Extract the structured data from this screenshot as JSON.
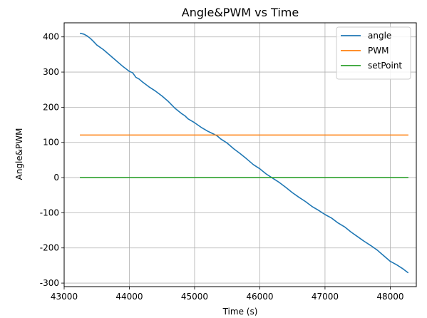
{
  "chart_data": {
    "type": "line",
    "title": "Angle&PWM vs Time",
    "xlabel": "Time (s)",
    "ylabel": "Angle&PWM",
    "xlim": [
      43000,
      48400
    ],
    "ylim": [
      -310,
      440
    ],
    "xticks": [
      43000,
      44000,
      45000,
      46000,
      47000,
      48000
    ],
    "yticks": [
      -300,
      -200,
      -100,
      0,
      100,
      200,
      300,
      400
    ],
    "grid": true,
    "legend_position": "top-right",
    "series": [
      {
        "name": "angle",
        "color": "#1f77b4",
        "x": [
          43250,
          43300,
          43350,
          43400,
          43450,
          43500,
          43600,
          43700,
          43800,
          43900,
          44000,
          44050,
          44100,
          44150,
          44200,
          44300,
          44400,
          44500,
          44600,
          44700,
          44800,
          44850,
          44900,
          45000,
          45100,
          45200,
          45300,
          45350,
          45400,
          45500,
          45600,
          45700,
          45800,
          45900,
          46000,
          46100,
          46200,
          46300,
          46400,
          46500,
          46600,
          46700,
          46800,
          46900,
          47000,
          47100,
          47200,
          47300,
          47400,
          47500,
          47600,
          47700,
          47800,
          47900,
          48000,
          48100,
          48200,
          48270
        ],
        "y": [
          410,
          408,
          403,
          396,
          387,
          377,
          364,
          348,
          332,
          316,
          302,
          298,
          285,
          280,
          272,
          258,
          246,
          232,
          216,
          197,
          182,
          176,
          167,
          156,
          143,
          132,
          123,
          118,
          110,
          98,
          82,
          68,
          53,
          37,
          25,
          10,
          -2,
          -14,
          -28,
          -43,
          -56,
          -68,
          -82,
          -93,
          -105,
          -115,
          -129,
          -140,
          -155,
          -168,
          -181,
          -193,
          -206,
          -222,
          -238,
          -248,
          -260,
          -270
        ]
      },
      {
        "name": "PWM",
        "color": "#ff7f0e",
        "x": [
          43250,
          48270
        ],
        "y": [
          121,
          121
        ]
      },
      {
        "name": "setPoint",
        "color": "#2ca02c",
        "x": [
          43250,
          48270
        ],
        "y": [
          0,
          0
        ]
      }
    ]
  }
}
